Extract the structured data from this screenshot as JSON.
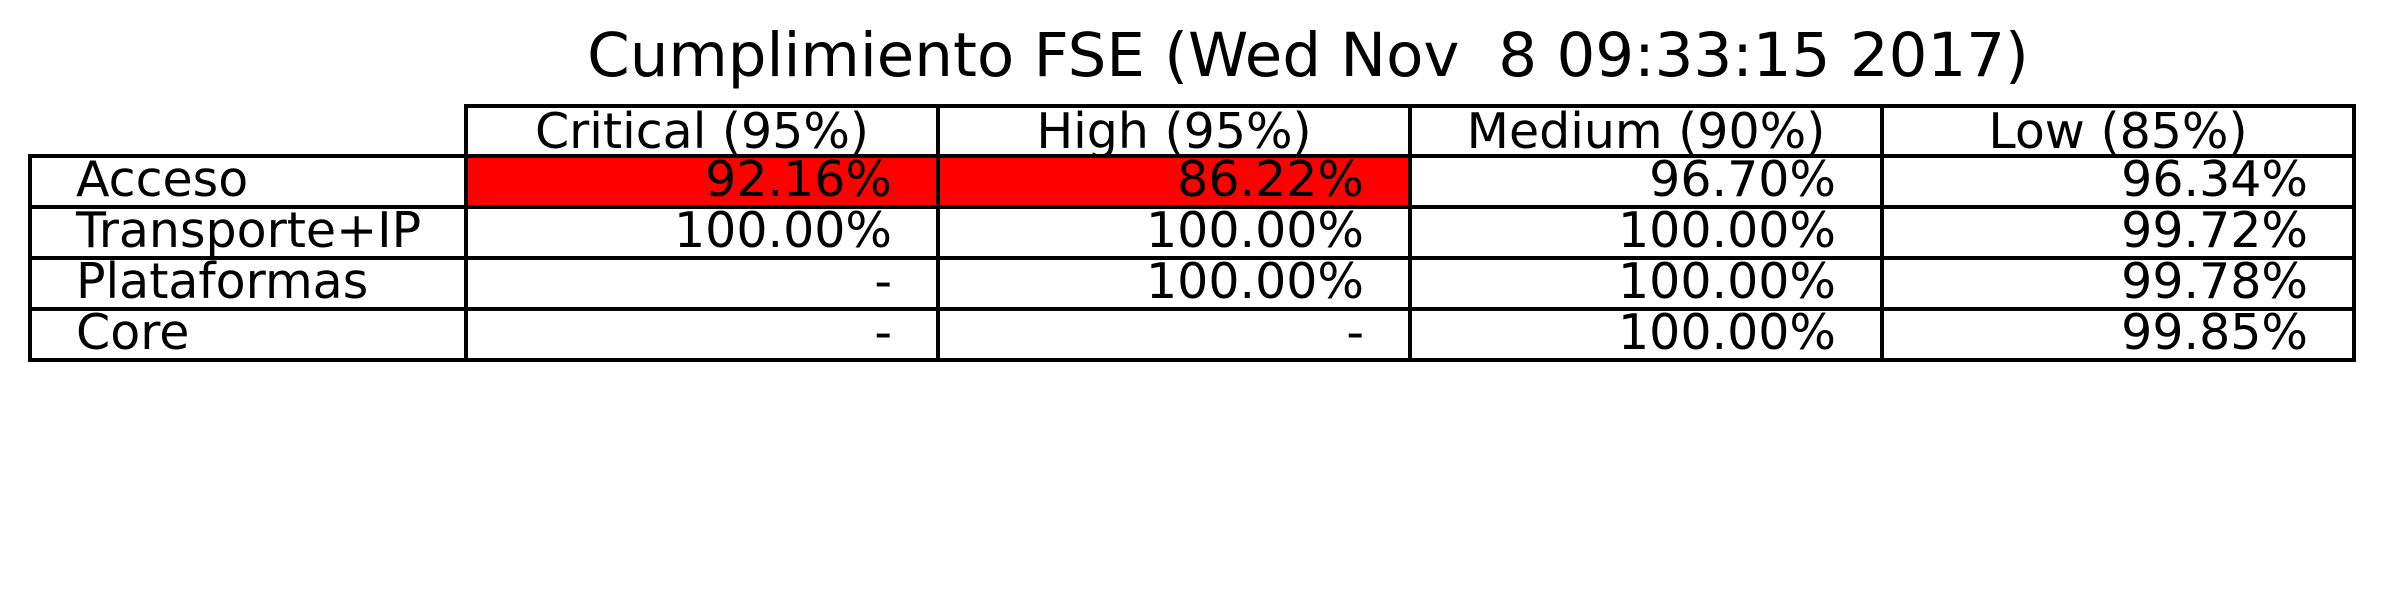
{
  "chart_data": {
    "type": "table",
    "title": "Cumplimiento FSE (Wed Nov  8 09:33:15 2017)",
    "columns": [
      "Critical (95%)",
      "High (95%)",
      "Medium (90%)",
      "Low (85%)"
    ],
    "rows": [
      {
        "label": "Acceso",
        "cells": [
          "92.16%",
          "86.22%",
          "96.70%",
          "96.34%"
        ],
        "highlight": [
          true,
          true,
          false,
          false
        ]
      },
      {
        "label": "Transporte+IP",
        "cells": [
          "100.00%",
          "100.00%",
          "100.00%",
          "99.72%"
        ],
        "highlight": [
          false,
          false,
          false,
          false
        ]
      },
      {
        "label": "Plataformas",
        "cells": [
          "-",
          "100.00%",
          "100.00%",
          "99.78%"
        ],
        "highlight": [
          false,
          false,
          false,
          false
        ]
      },
      {
        "label": "Core",
        "cells": [
          "-",
          "-",
          "100.00%",
          "99.85%"
        ],
        "highlight": [
          false,
          false,
          false,
          false
        ]
      }
    ],
    "highlight_color": "#ff0000",
    "cell_color": "#ffffff",
    "border_color": "#000000"
  }
}
